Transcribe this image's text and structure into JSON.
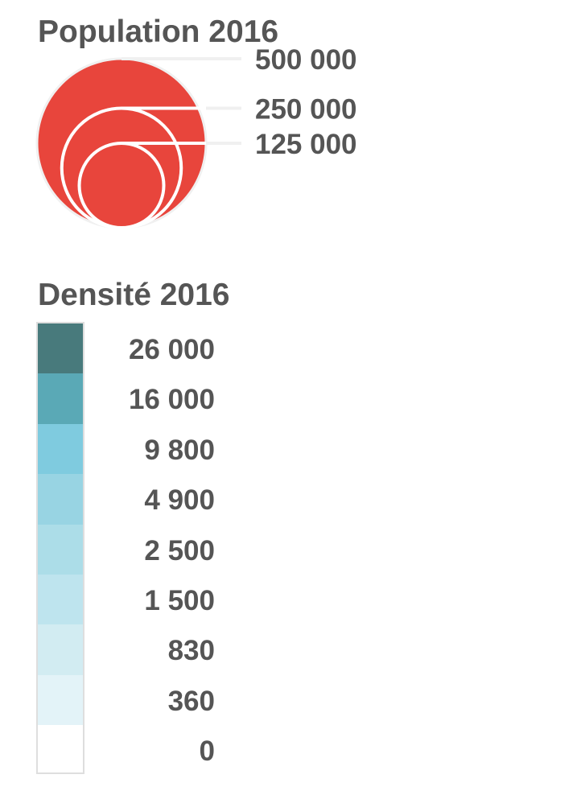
{
  "population": {
    "title": "Population 2016",
    "circle_color": "#E8453C",
    "circles": [
      {
        "value": 500000,
        "label": "500 000"
      },
      {
        "value": 250000,
        "label": "250 000"
      },
      {
        "value": 125000,
        "label": "125 000"
      }
    ]
  },
  "density": {
    "title": "Densité 2016",
    "classes": [
      {
        "label": "26 000",
        "color": "#487A7C"
      },
      {
        "label": "16 000",
        "color": "#5AA9B6"
      },
      {
        "label": "9 800",
        "color": "#7FCBDF"
      },
      {
        "label": "4 900",
        "color": "#98D4E3"
      },
      {
        "label": "2 500",
        "color": "#ACDDE8"
      },
      {
        "label": "1 500",
        "color": "#BEE4EE"
      },
      {
        "label": "830",
        "color": "#D2ECF2"
      },
      {
        "label": "360",
        "color": "#E3F3F8"
      },
      {
        "label": "0",
        "color": "#FFFFFF"
      }
    ]
  }
}
